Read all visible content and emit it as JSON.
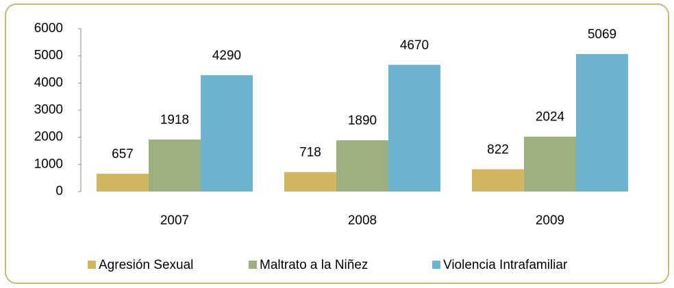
{
  "chart_data": {
    "type": "bar",
    "categories": [
      "2007",
      "2008",
      "2009"
    ],
    "series": [
      {
        "name": "Agresión Sexual",
        "color": "#d4b662",
        "values": [
          657,
          718,
          822
        ]
      },
      {
        "name": "Maltrato a la Niñez",
        "color": "#9db180",
        "values": [
          1918,
          1890,
          2024
        ]
      },
      {
        "name": "Violencia Intrafamiliar",
        "color": "#6db3cd",
        "values": [
          4290,
          4670,
          5069
        ]
      }
    ],
    "ylim": [
      0,
      6000
    ],
    "yticks": [
      0,
      1000,
      2000,
      3000,
      4000,
      5000,
      6000
    ],
    "grid": false,
    "legend": "bottom"
  }
}
